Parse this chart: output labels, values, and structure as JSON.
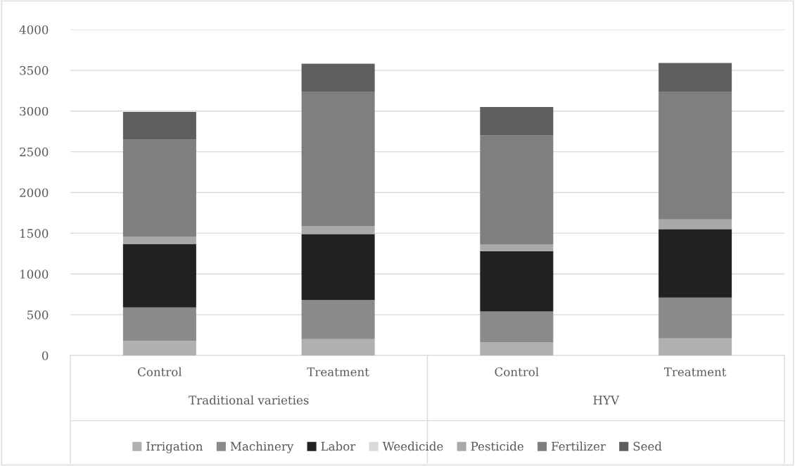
{
  "chart_data": {
    "type": "bar",
    "stacked": true,
    "categories": [
      "Control",
      "Treatment",
      "Control",
      "Treatment"
    ],
    "annotations": [
      "Traditional varieties",
      "HYV"
    ],
    "series": [
      {
        "name": "Irrigation",
        "color": "#b0b0b0",
        "values": [
          180,
          200,
          160,
          210
        ]
      },
      {
        "name": "Machinery",
        "color": "#8a8a8a",
        "values": [
          410,
          480,
          380,
          500
        ]
      },
      {
        "name": "Labor",
        "color": "#212121",
        "values": [
          780,
          810,
          740,
          840
        ]
      },
      {
        "name": "Weedicide",
        "color": "#d9d9d9",
        "values": [
          null,
          null,
          null,
          null
        ]
      },
      {
        "name": "Pesticide",
        "color": "#a9a9a9",
        "values": [
          90,
          100,
          80,
          120
        ]
      },
      {
        "name": "Fertilizer",
        "color": "#7f7f7f",
        "values": [
          1190,
          1650,
          1340,
          1570
        ]
      },
      {
        "name": "Seed",
        "color": "#5f5f5f",
        "values": [
          340,
          340,
          350,
          350
        ]
      }
    ],
    "ylim": [
      0,
      4000
    ],
    "yticks": [
      0,
      500,
      1000,
      1500,
      2000,
      2500,
      3000,
      3500,
      4000
    ],
    "grid": "y",
    "legend": "bottom"
  }
}
